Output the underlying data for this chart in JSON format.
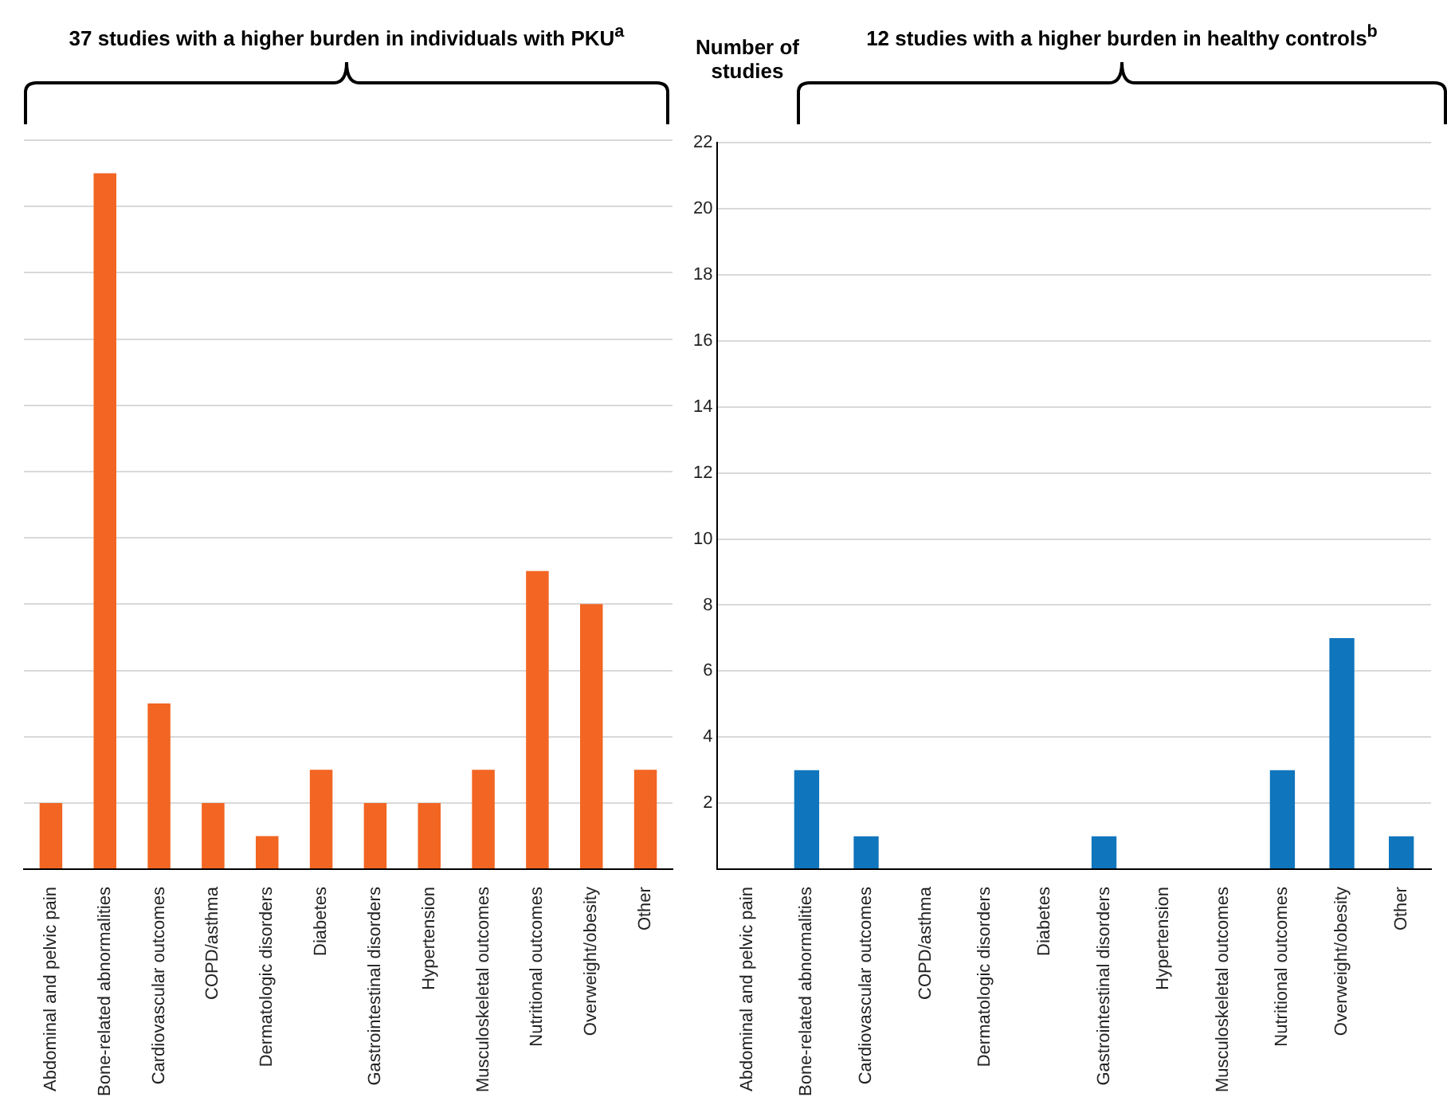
{
  "chart_data": [
    {
      "type": "bar",
      "title": "37 studies with a higher burden in individuals with PKU$^{a}$",
      "categories": [
        "Abdominal and pelvic pain",
        "Bone-related abnormalities",
        "Cardiovascular outcomes",
        "COPD/asthma",
        "Dermatologic disorders",
        "Diabetes",
        "Gastrointestinal disorders",
        "Hypertension",
        "Musculoskeletal outcomes",
        "Nutritional outcomes",
        "Overweight/obesity",
        "Other"
      ],
      "values": [
        2,
        21,
        5,
        2,
        1,
        3,
        2,
        2,
        3,
        9,
        8,
        3
      ],
      "color": "#f26522",
      "ylim": [
        0,
        22
      ],
      "yticks": [
        {
          "value": 0,
          "label": null
        },
        2,
        4,
        6,
        8,
        10,
        12,
        14,
        16,
        18,
        20,
        22
      ],
      "grid": "y",
      "tick_labels": "x"
    },
    {
      "type": "bar",
      "title": "12 studies with a higher burden in healthy controls$^{b}$",
      "ylabel": "Number of studies",
      "categories": [
        "Abdominal and pelvic pain",
        "Bone-related abnormalities",
        "Cardiovascular outcomes",
        "COPD/asthma",
        "Dermatologic disorders",
        "Diabetes",
        "Gastrointestinal disorders",
        "Hypertension",
        "Musculoskeletal outcomes",
        "Nutritional outcomes",
        "Overweight/obesity",
        "Other"
      ],
      "values": [
        0,
        3,
        1,
        0,
        0,
        0,
        1,
        0,
        0,
        3,
        7,
        1
      ],
      "color": "#0f75bc",
      "ylim": [
        0,
        22
      ],
      "yticks": [
        {
          "value": 0,
          "label": null
        },
        2,
        4,
        6,
        8,
        10,
        12,
        14,
        16,
        18,
        20,
        22
      ],
      "grid": "y"
    }
  ]
}
